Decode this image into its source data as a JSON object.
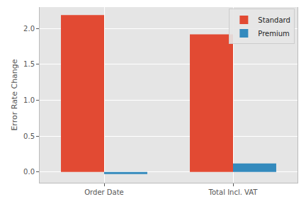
{
  "chart_data": {
    "type": "bar",
    "y_label": "Error Rate Change",
    "categories": [
      "Order Date",
      "Total Incl. VAT"
    ],
    "series": [
      {
        "name": "Standard",
        "color": "#E24A33",
        "values": [
          2.19,
          1.92
        ]
      },
      {
        "name": "Premium",
        "color": "#348ABD",
        "values": [
          -0.03,
          0.12
        ]
      }
    ],
    "ylim": [
      -0.15,
      2.3
    ],
    "yticks": [
      {
        "value": 0,
        "label": "0.0"
      },
      {
        "value": 0.5,
        "label": "0.5"
      },
      {
        "value": 1,
        "label": "1.0"
      },
      {
        "value": 1.5,
        "label": "1.5"
      },
      {
        "value": 2,
        "label": "2.0"
      }
    ],
    "grid": true,
    "legend": "upper right"
  }
}
